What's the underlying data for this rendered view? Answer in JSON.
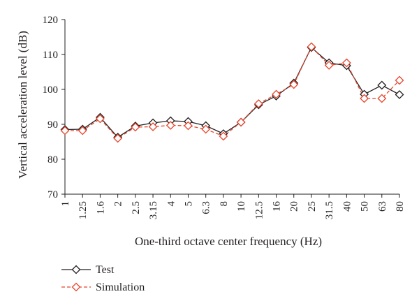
{
  "chart_data": {
    "type": "line",
    "xlabel": "One-third octave center frequency (Hz)",
    "ylabel": "Vertical acceleration level (dB)",
    "ylim": [
      70,
      120
    ],
    "yticks": [
      "70",
      "80",
      "90",
      "100",
      "110",
      "120"
    ],
    "categories": [
      "1",
      "1.25",
      "1.6",
      "2",
      "2.5",
      "3.15",
      "4",
      "5",
      "6.3",
      "8",
      "10",
      "12.5",
      "16",
      "20",
      "25",
      "31.5",
      "40",
      "50",
      "63",
      "80"
    ],
    "grid": false,
    "legend_position": "bottom-left",
    "series": [
      {
        "name": "Test",
        "color": "#231f20",
        "line_style": "solid",
        "marker": "diamond",
        "values": [
          88.5,
          88.6,
          92.0,
          86.3,
          89.5,
          90.4,
          91.0,
          90.8,
          89.6,
          87.3,
          90.6,
          95.6,
          98.1,
          101.8,
          112.0,
          107.6,
          106.8,
          98.6,
          101.2,
          98.5
        ]
      },
      {
        "name": "Simulation",
        "color": "#e8452c",
        "line_style": "dashed",
        "marker": "diamond",
        "values": [
          88.2,
          88.2,
          91.6,
          86.0,
          89.2,
          89.3,
          89.7,
          89.6,
          88.6,
          86.6,
          90.6,
          95.9,
          98.6,
          101.4,
          112.2,
          106.9,
          107.6,
          97.4,
          97.4,
          102.6
        ]
      }
    ]
  }
}
